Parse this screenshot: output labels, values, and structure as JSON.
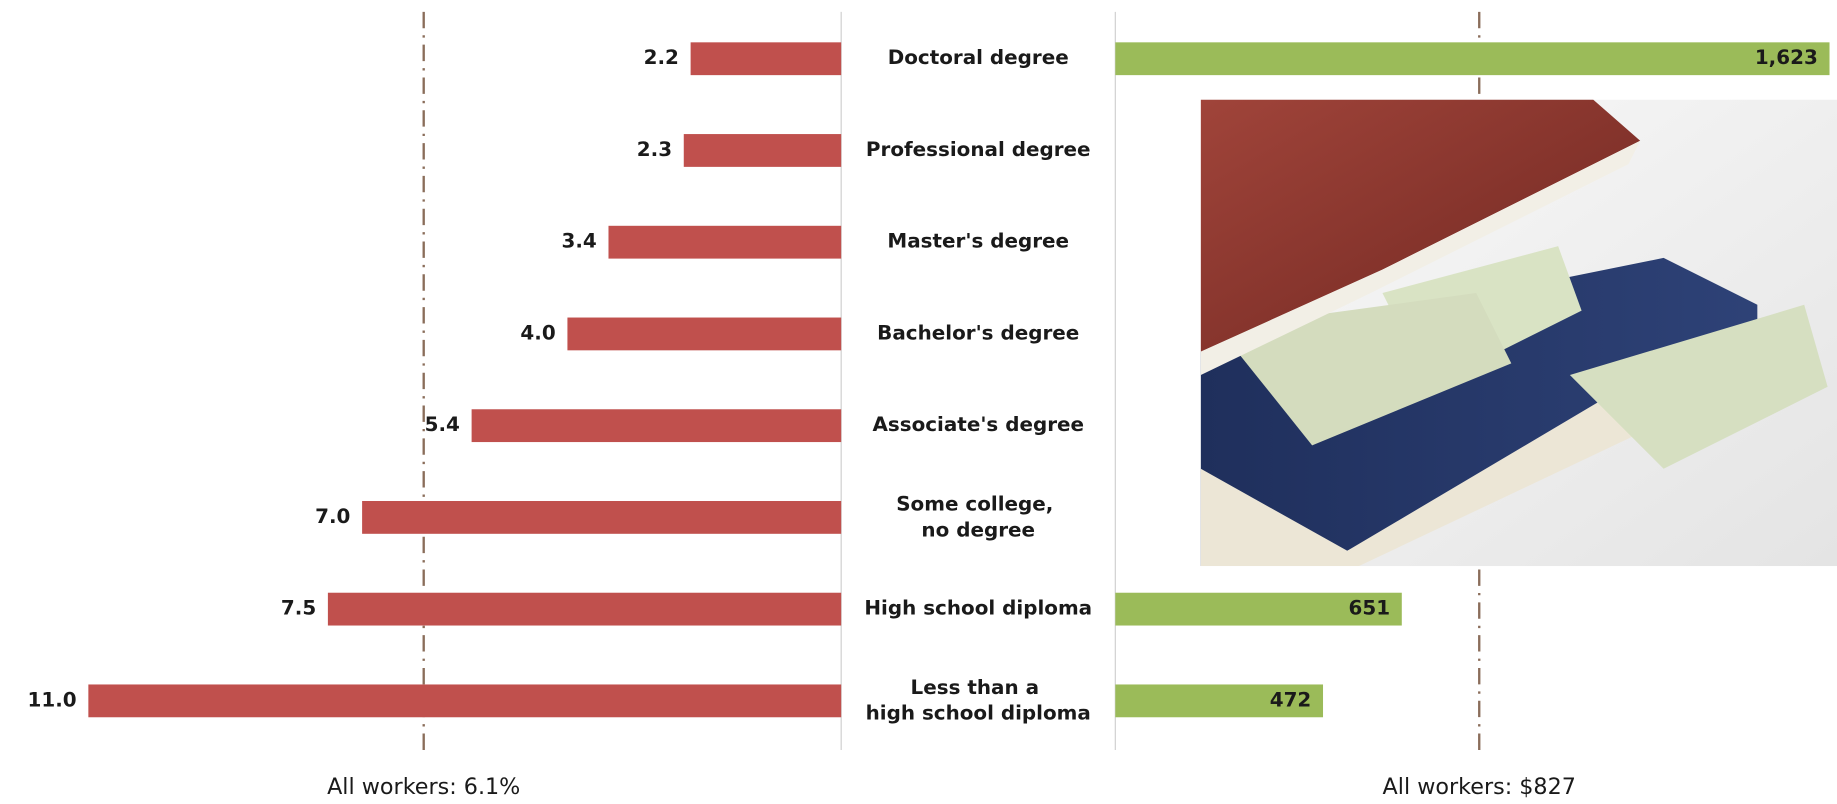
{
  "chart_data": [
    {
      "type": "bar",
      "orientation": "horizontal",
      "direction": "leftward",
      "categories": [
        "Doctoral degree",
        "Professional degree",
        "Master's degree",
        "Bachelor's degree",
        "Associate's degree",
        "Some college,\nno degree",
        "High school diploma",
        "Less than a\nhigh school diploma"
      ],
      "values": [
        2.2,
        2.3,
        3.4,
        4.0,
        5.4,
        7.0,
        7.5,
        11.0
      ],
      "value_labels": [
        "2.2",
        "2.3",
        "3.4",
        "4.0",
        "5.4",
        "7.0",
        "7.5",
        "11.0"
      ],
      "color": "#c0504d",
      "xlim": [
        0,
        12
      ],
      "reference": {
        "value": 6.1,
        "label": "All workers: 6.1%"
      }
    },
    {
      "type": "bar",
      "orientation": "horizontal",
      "direction": "rightward",
      "values": [
        1623,
        null,
        null,
        null,
        null,
        null,
        651,
        472
      ],
      "value_labels": [
        "1,623",
        null,
        null,
        null,
        null,
        null,
        "651",
        "472"
      ],
      "color": "#9bbb59",
      "xlim": [
        0,
        1640
      ],
      "reference": {
        "value": 827,
        "label": "All workers: $827"
      }
    }
  ]
}
